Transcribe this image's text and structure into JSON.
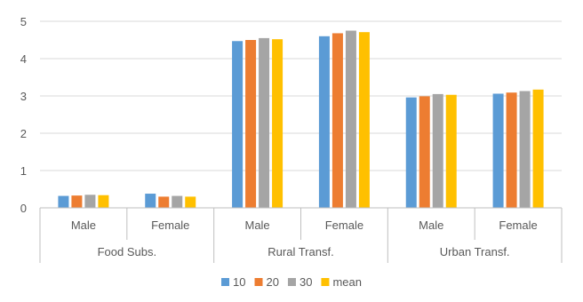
{
  "chart_data": {
    "type": "bar",
    "groups": [
      {
        "label": "Food Subs.",
        "categories": [
          "Male",
          "Female"
        ]
      },
      {
        "label": "Rural Transf.",
        "categories": [
          "Male",
          "Female"
        ]
      },
      {
        "label": "Urban Transf.",
        "categories": [
          "Male",
          "Female"
        ]
      }
    ],
    "series": [
      {
        "name": "10",
        "color": "#5b9bd5",
        "values": [
          0.32,
          0.38,
          4.47,
          4.6,
          2.96,
          3.06
        ]
      },
      {
        "name": "20",
        "color": "#ed7d31",
        "values": [
          0.33,
          0.3,
          4.5,
          4.68,
          2.99,
          3.09
        ]
      },
      {
        "name": "30",
        "color": "#a5a5a5",
        "values": [
          0.35,
          0.32,
          4.55,
          4.75,
          3.05,
          3.13
        ]
      },
      {
        "name": "mean",
        "color": "#ffc000",
        "values": [
          0.34,
          0.3,
          4.52,
          4.71,
          3.03,
          3.17
        ]
      }
    ],
    "ylim": [
      0,
      5
    ],
    "yticks": [
      0,
      1,
      2,
      3,
      4,
      5
    ],
    "grid": true,
    "legend_position": "bottom",
    "title": "",
    "xlabel": "",
    "ylabel": ""
  },
  "colors": {
    "grid": "#d9d9d9",
    "axis": "#bfbfbf",
    "text": "#595959"
  }
}
